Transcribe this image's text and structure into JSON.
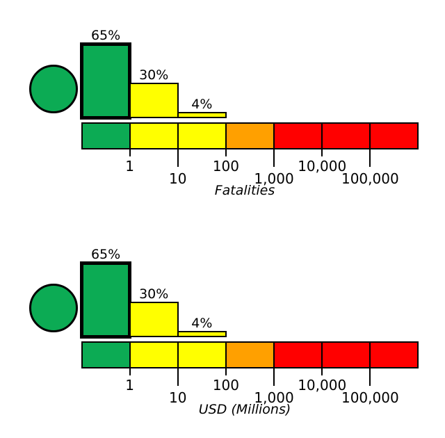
{
  "figure": {
    "background": "#FFFFFF",
    "description": "Two stacked severity-distribution charts, each with a green status circle, percentage bars over a logarithmic color scale"
  },
  "palette": {
    "green": "#0CAB54",
    "yellow": "#FFFF00",
    "orange": "#FFA000",
    "red": "#FF0000",
    "stroke": "#000000"
  },
  "chart_data": [
    {
      "type": "bar",
      "title": "",
      "xlabel": "Fatalities",
      "ylabel": "",
      "x_scale": "log",
      "categories": [
        "<1",
        "1-10",
        "10-100"
      ],
      "values": [
        65,
        30,
        4
      ],
      "value_labels": [
        "65%",
        "30%",
        "4%"
      ],
      "bar_colors": [
        "green",
        "yellow",
        "yellow"
      ],
      "highlighted_bar_index": 0,
      "marker": {
        "shape": "circle",
        "color": "green"
      },
      "tick_labels": [
        "1",
        "10",
        "100",
        "1,000",
        "10,000",
        "100,000"
      ],
      "scale_segments": [
        "green",
        "yellow",
        "yellow",
        "orange",
        "red",
        "red",
        "red"
      ],
      "grid": false,
      "legend": "none"
    },
    {
      "type": "bar",
      "title": "",
      "xlabel": "USD (Millions)",
      "ylabel": "",
      "x_scale": "log",
      "categories": [
        "<1",
        "1-10",
        "10-100"
      ],
      "values": [
        65,
        30,
        4
      ],
      "value_labels": [
        "65%",
        "30%",
        "4%"
      ],
      "bar_colors": [
        "green",
        "yellow",
        "yellow"
      ],
      "highlighted_bar_index": 0,
      "marker": {
        "shape": "circle",
        "color": "green"
      },
      "tick_labels": [
        "1",
        "10",
        "100",
        "1,000",
        "10,000",
        "100,000"
      ],
      "scale_segments": [
        "green",
        "yellow",
        "yellow",
        "orange",
        "red",
        "red",
        "red"
      ],
      "grid": false,
      "legend": "none"
    }
  ]
}
